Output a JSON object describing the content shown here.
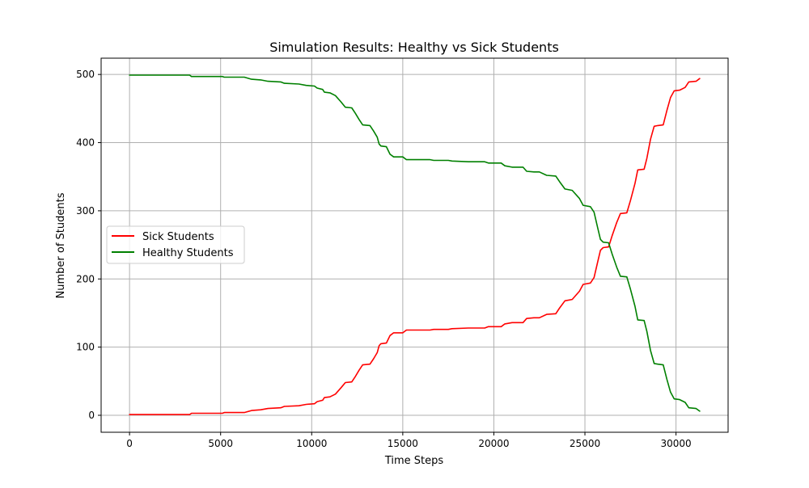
{
  "chart_data": {
    "type": "line",
    "title": "Simulation Results: Healthy vs Sick Students",
    "xlabel": "Time Steps",
    "ylabel": "Number of Students",
    "xlim": [
      -1560,
      32860
    ],
    "ylim": [
      -24.9,
      523.9
    ],
    "xticks": [
      0,
      5000,
      10000,
      15000,
      20000,
      25000,
      30000
    ],
    "yticks": [
      0,
      100,
      200,
      300,
      400,
      500
    ],
    "grid": true,
    "legend_position": "center-left",
    "series": [
      {
        "name": "Sick Students",
        "color": "#ff0000",
        "points": [
          [
            0,
            1
          ],
          [
            3300,
            1
          ],
          [
            3400,
            3
          ],
          [
            5100,
            3
          ],
          [
            5200,
            4
          ],
          [
            6300,
            4
          ],
          [
            6700,
            7
          ],
          [
            7200,
            8
          ],
          [
            7600,
            10
          ],
          [
            8300,
            11
          ],
          [
            8500,
            13
          ],
          [
            9300,
            14
          ],
          [
            9700,
            16
          ],
          [
            10150,
            17
          ],
          [
            10300,
            20
          ],
          [
            10600,
            22
          ],
          [
            10700,
            26
          ],
          [
            11000,
            27
          ],
          [
            11300,
            31
          ],
          [
            11600,
            40
          ],
          [
            11850,
            48
          ],
          [
            12200,
            49
          ],
          [
            12400,
            57
          ],
          [
            12600,
            66
          ],
          [
            12800,
            74
          ],
          [
            13200,
            75
          ],
          [
            13400,
            83
          ],
          [
            13600,
            92
          ],
          [
            13700,
            102
          ],
          [
            13800,
            105
          ],
          [
            14100,
            106
          ],
          [
            14300,
            117
          ],
          [
            14500,
            121
          ],
          [
            15000,
            121
          ],
          [
            15200,
            125
          ],
          [
            16500,
            125
          ],
          [
            16700,
            126
          ],
          [
            17500,
            126
          ],
          [
            17700,
            127
          ],
          [
            18600,
            128
          ],
          [
            19500,
            128
          ],
          [
            19700,
            130
          ],
          [
            20400,
            130
          ],
          [
            20600,
            134
          ],
          [
            21000,
            136
          ],
          [
            21600,
            136
          ],
          [
            21800,
            142
          ],
          [
            22200,
            143
          ],
          [
            22500,
            143
          ],
          [
            22900,
            148
          ],
          [
            23400,
            149
          ],
          [
            23600,
            157
          ],
          [
            23900,
            168
          ],
          [
            24300,
            170
          ],
          [
            24700,
            182
          ],
          [
            24900,
            192
          ],
          [
            25300,
            194
          ],
          [
            25500,
            202
          ],
          [
            25700,
            225
          ],
          [
            25850,
            242
          ],
          [
            26000,
            246
          ],
          [
            26300,
            247
          ],
          [
            26500,
            264
          ],
          [
            26750,
            283
          ],
          [
            26950,
            296
          ],
          [
            27300,
            297
          ],
          [
            27500,
            315
          ],
          [
            27750,
            340
          ],
          [
            27900,
            360
          ],
          [
            28250,
            361
          ],
          [
            28400,
            377
          ],
          [
            28600,
            405
          ],
          [
            28800,
            424
          ],
          [
            29000,
            425
          ],
          [
            29300,
            426
          ],
          [
            29500,
            447
          ],
          [
            29700,
            466
          ],
          [
            29900,
            476
          ],
          [
            30200,
            477
          ],
          [
            30500,
            481
          ],
          [
            30700,
            489
          ],
          [
            31100,
            490
          ],
          [
            31300,
            494
          ]
        ]
      },
      {
        "name": "Healthy Students",
        "color": "#008000",
        "points": [
          [
            0,
            499
          ],
          [
            3300,
            499
          ],
          [
            3400,
            497
          ],
          [
            5100,
            497
          ],
          [
            5200,
            496
          ],
          [
            6300,
            496
          ],
          [
            6700,
            493
          ],
          [
            7200,
            492
          ],
          [
            7600,
            490
          ],
          [
            8300,
            489
          ],
          [
            8500,
            487
          ],
          [
            9300,
            486
          ],
          [
            9700,
            484
          ],
          [
            10150,
            483
          ],
          [
            10300,
            480
          ],
          [
            10600,
            478
          ],
          [
            10700,
            474
          ],
          [
            11000,
            473
          ],
          [
            11300,
            469
          ],
          [
            11600,
            460
          ],
          [
            11850,
            452
          ],
          [
            12200,
            451
          ],
          [
            12400,
            443
          ],
          [
            12600,
            434
          ],
          [
            12800,
            426
          ],
          [
            13200,
            425
          ],
          [
            13400,
            417
          ],
          [
            13600,
            408
          ],
          [
            13700,
            398
          ],
          [
            13800,
            395
          ],
          [
            14100,
            394
          ],
          [
            14300,
            383
          ],
          [
            14500,
            379
          ],
          [
            15000,
            379
          ],
          [
            15200,
            375
          ],
          [
            16500,
            375
          ],
          [
            16700,
            374
          ],
          [
            17500,
            374
          ],
          [
            17700,
            373
          ],
          [
            18600,
            372
          ],
          [
            19500,
            372
          ],
          [
            19700,
            370
          ],
          [
            20400,
            370
          ],
          [
            20600,
            366
          ],
          [
            21000,
            364
          ],
          [
            21600,
            364
          ],
          [
            21800,
            358
          ],
          [
            22200,
            357
          ],
          [
            22500,
            357
          ],
          [
            22900,
            352
          ],
          [
            23400,
            351
          ],
          [
            23600,
            343
          ],
          [
            23900,
            332
          ],
          [
            24300,
            330
          ],
          [
            24700,
            318
          ],
          [
            24900,
            308
          ],
          [
            25300,
            306
          ],
          [
            25500,
            298
          ],
          [
            25700,
            275
          ],
          [
            25850,
            258
          ],
          [
            26000,
            254
          ],
          [
            26300,
            253
          ],
          [
            26500,
            236
          ],
          [
            26750,
            217
          ],
          [
            26950,
            204
          ],
          [
            27300,
            203
          ],
          [
            27500,
            185
          ],
          [
            27750,
            160
          ],
          [
            27900,
            140
          ],
          [
            28250,
            139
          ],
          [
            28400,
            123
          ],
          [
            28600,
            95
          ],
          [
            28800,
            76
          ],
          [
            29000,
            75
          ],
          [
            29300,
            74
          ],
          [
            29500,
            53
          ],
          [
            29700,
            34
          ],
          [
            29900,
            24
          ],
          [
            30200,
            23
          ],
          [
            30500,
            19
          ],
          [
            30700,
            11
          ],
          [
            31100,
            10
          ],
          [
            31300,
            6
          ]
        ]
      }
    ]
  }
}
